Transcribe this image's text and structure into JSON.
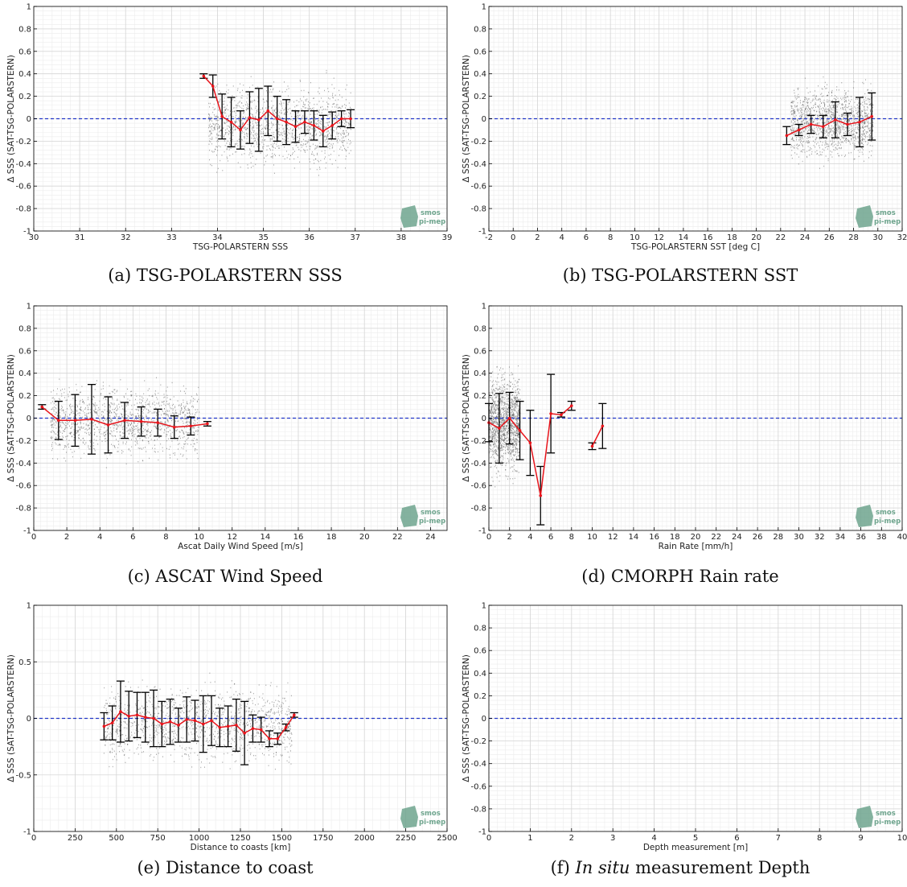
{
  "colors": {
    "mean_line": "#e8141b",
    "zero_line": "#2236c8",
    "errorbar": "#000000",
    "scatter": "#555555",
    "logo": "#6fa58e"
  },
  "logo": {
    "line1": "smos",
    "line2": "pi-mep"
  },
  "chart_data": [
    {
      "type": "scatter",
      "panel_id": "a",
      "caption_label": "(a)",
      "caption": "TSG-POLARSTERN SSS",
      "xlabel": "TSG-POLARSTERN SSS",
      "ylabel": "Δ SSS (SAT-TSG-POLARSTERN)",
      "xlim": [
        30,
        39
      ],
      "ylim": [
        -1,
        1
      ],
      "xticks": [
        30,
        31,
        32,
        33,
        34,
        35,
        36,
        37,
        38,
        39
      ],
      "yticks": [
        -1,
        -0.8,
        -0.6,
        -0.4,
        -0.2,
        0,
        0.2,
        0.4,
        0.6,
        0.8,
        1
      ],
      "grid": true,
      "zero_line": 0,
      "scatter_cloud": {
        "x_range": [
          33.8,
          36.9
        ],
        "y_center": -0.05,
        "y_spread": 0.35
      },
      "series": [
        {
          "x": [
            33.7,
            33.9,
            34.1,
            34.3,
            34.5,
            34.7,
            34.9,
            35.1,
            35.3,
            35.5,
            35.7,
            35.9,
            36.1,
            36.3,
            36.5,
            36.7,
            36.9
          ],
          "mean": [
            0.38,
            0.29,
            0.02,
            -0.03,
            -0.1,
            0.01,
            -0.01,
            0.07,
            0.0,
            -0.03,
            -0.07,
            -0.03,
            -0.06,
            -0.11,
            -0.06,
            0.0,
            0.0
          ],
          "std": [
            0.02,
            0.1,
            0.2,
            0.22,
            0.17,
            0.23,
            0.28,
            0.22,
            0.2,
            0.2,
            0.14,
            0.1,
            0.13,
            0.14,
            0.12,
            0.07,
            0.08
          ]
        }
      ]
    },
    {
      "type": "scatter",
      "panel_id": "b",
      "caption_label": "(b)",
      "caption": "TSG-POLARSTERN SST",
      "xlabel": "TSG-POLARSTERN SST [deg C]",
      "ylabel": "Δ SSS (SAT-TSG-POLARSTERN)",
      "xlim": [
        -2,
        32
      ],
      "ylim": [
        -1,
        1
      ],
      "xticks": [
        -2,
        0,
        2,
        4,
        6,
        8,
        10,
        12,
        14,
        16,
        18,
        20,
        22,
        24,
        26,
        28,
        30,
        32
      ],
      "yticks": [
        -1,
        -0.8,
        -0.6,
        -0.4,
        -0.2,
        0,
        0.2,
        0.4,
        0.6,
        0.8,
        1
      ],
      "grid": true,
      "zero_line": 0,
      "scatter_cloud": {
        "x_range": [
          22.8,
          29.6
        ],
        "y_center": -0.03,
        "y_spread": 0.3
      },
      "series": [
        {
          "x": [
            22.5,
            23.5,
            24.5,
            25.5,
            26.5,
            27.5,
            28.5,
            29.5
          ],
          "mean": [
            -0.15,
            -0.1,
            -0.05,
            -0.07,
            -0.01,
            -0.05,
            -0.03,
            0.02
          ],
          "std": [
            0.08,
            0.05,
            0.08,
            0.1,
            0.16,
            0.1,
            0.22,
            0.21
          ]
        }
      ]
    },
    {
      "type": "scatter",
      "panel_id": "c",
      "caption_label": "(c)",
      "caption": "ASCAT Wind Speed",
      "xlabel": "Ascat Daily Wind Speed [m/s]",
      "ylabel": "Δ SSS (SAT-TSG-POLARSTERN)",
      "xlim": [
        0,
        25
      ],
      "ylim": [
        -1,
        1
      ],
      "xticks": [
        0,
        2,
        4,
        6,
        8,
        10,
        12,
        14,
        16,
        18,
        20,
        22,
        24
      ],
      "yticks": [
        -1,
        -0.8,
        -0.6,
        -0.4,
        -0.2,
        0,
        0.2,
        0.4,
        0.6,
        0.8,
        1
      ],
      "grid": true,
      "zero_line": 0,
      "scatter_cloud": {
        "x_range": [
          1.0,
          10.0
        ],
        "y_center": -0.03,
        "y_spread": 0.3
      },
      "series": [
        {
          "x": [
            0.5,
            1.5,
            2.5,
            3.5,
            4.5,
            5.5,
            6.5,
            7.5,
            8.5,
            9.5,
            10.5
          ],
          "mean": [
            0.1,
            -0.02,
            -0.02,
            -0.01,
            -0.06,
            -0.02,
            -0.03,
            -0.04,
            -0.08,
            -0.07,
            -0.05
          ],
          "std": [
            0.02,
            0.17,
            0.23,
            0.31,
            0.25,
            0.16,
            0.13,
            0.12,
            0.1,
            0.08,
            0.02
          ]
        }
      ]
    },
    {
      "type": "scatter",
      "panel_id": "d",
      "caption_label": "(d)",
      "caption": "CMORPH Rain rate",
      "xlabel": "Rain Rate [mm/h]",
      "ylabel": "Δ SSS (SAT-TSG-POLARSTERN)",
      "xlim": [
        0,
        40
      ],
      "ylim": [
        -1,
        1
      ],
      "xticks": [
        0,
        2,
        4,
        6,
        8,
        10,
        12,
        14,
        16,
        18,
        20,
        22,
        24,
        26,
        28,
        30,
        32,
        34,
        36,
        38,
        40
      ],
      "yticks": [
        -1,
        -0.8,
        -0.6,
        -0.4,
        -0.2,
        0,
        0.2,
        0.4,
        0.6,
        0.8,
        1
      ],
      "grid": true,
      "zero_line": 0,
      "scatter_cloud": {
        "x_range": [
          0.0,
          3.0
        ],
        "y_center": -0.05,
        "y_spread": 0.4
      },
      "series": [
        {
          "x": [
            0,
            1,
            2,
            3,
            4,
            5,
            6,
            7,
            8
          ],
          "mean": [
            -0.04,
            -0.09,
            0.0,
            -0.11,
            -0.22,
            -0.69,
            0.04,
            0.03,
            0.11
          ],
          "std": [
            0.17,
            0.31,
            0.23,
            0.26,
            0.29,
            0.26,
            0.35,
            0.02,
            0.04
          ]
        },
        {
          "x": [
            10,
            11
          ],
          "mean": [
            -0.25,
            -0.07
          ],
          "std": [
            0.03,
            0.2
          ]
        }
      ]
    },
    {
      "type": "scatter",
      "panel_id": "e",
      "caption_label": "(e)",
      "caption": "Distance to coast",
      "xlabel": "Distance to coasts [km]",
      "ylabel": "Δ SSS (SAT-TSG-POLARSTERN)",
      "xlim": [
        0,
        2500
      ],
      "ylim": [
        -1,
        1
      ],
      "xticks": [
        0,
        250,
        500,
        750,
        1000,
        1250,
        1500,
        1750,
        2000,
        2250,
        2500
      ],
      "yticks": [
        -1,
        -0.5,
        0,
        0.5,
        1
      ],
      "grid": true,
      "zero_line": 0,
      "scatter_cloud": {
        "x_range": [
          420,
          1560
        ],
        "y_center": -0.05,
        "y_spread": 0.32
      },
      "series": [
        {
          "x": [
            425,
            475,
            525,
            575,
            625,
            675,
            725,
            775,
            825,
            875,
            925,
            975,
            1025,
            1075,
            1125,
            1175,
            1225,
            1275,
            1325,
            1375,
            1425,
            1475,
            1525,
            1575
          ],
          "mean": [
            -0.07,
            -0.04,
            0.06,
            0.02,
            0.03,
            0.01,
            0.0,
            -0.05,
            -0.03,
            -0.06,
            -0.01,
            -0.02,
            -0.05,
            -0.02,
            -0.08,
            -0.07,
            -0.06,
            -0.13,
            -0.09,
            -0.1,
            -0.18,
            -0.18,
            -0.08,
            0.03
          ],
          "std": [
            0.12,
            0.15,
            0.27,
            0.22,
            0.2,
            0.22,
            0.25,
            0.2,
            0.2,
            0.15,
            0.2,
            0.18,
            0.25,
            0.22,
            0.17,
            0.18,
            0.23,
            0.28,
            0.12,
            0.11,
            0.07,
            0.05,
            0.03,
            0.02
          ]
        }
      ]
    },
    {
      "type": "scatter",
      "panel_id": "f",
      "caption_label": "(f)",
      "caption_italic": "In situ",
      "caption": "measurement Depth",
      "xlabel": "Depth measurement [m]",
      "ylabel": "Δ SSS (SAT-TSG-POLARSTERN)",
      "xlim": [
        0,
        10
      ],
      "ylim": [
        -1,
        1
      ],
      "xticks": [
        0,
        1,
        2,
        3,
        4,
        5,
        6,
        7,
        8,
        9,
        10
      ],
      "yticks": [
        -1,
        -0.8,
        -0.6,
        -0.4,
        -0.2,
        0,
        0.2,
        0.4,
        0.6,
        0.8,
        1
      ],
      "grid": true,
      "zero_line": 0,
      "series": []
    }
  ]
}
